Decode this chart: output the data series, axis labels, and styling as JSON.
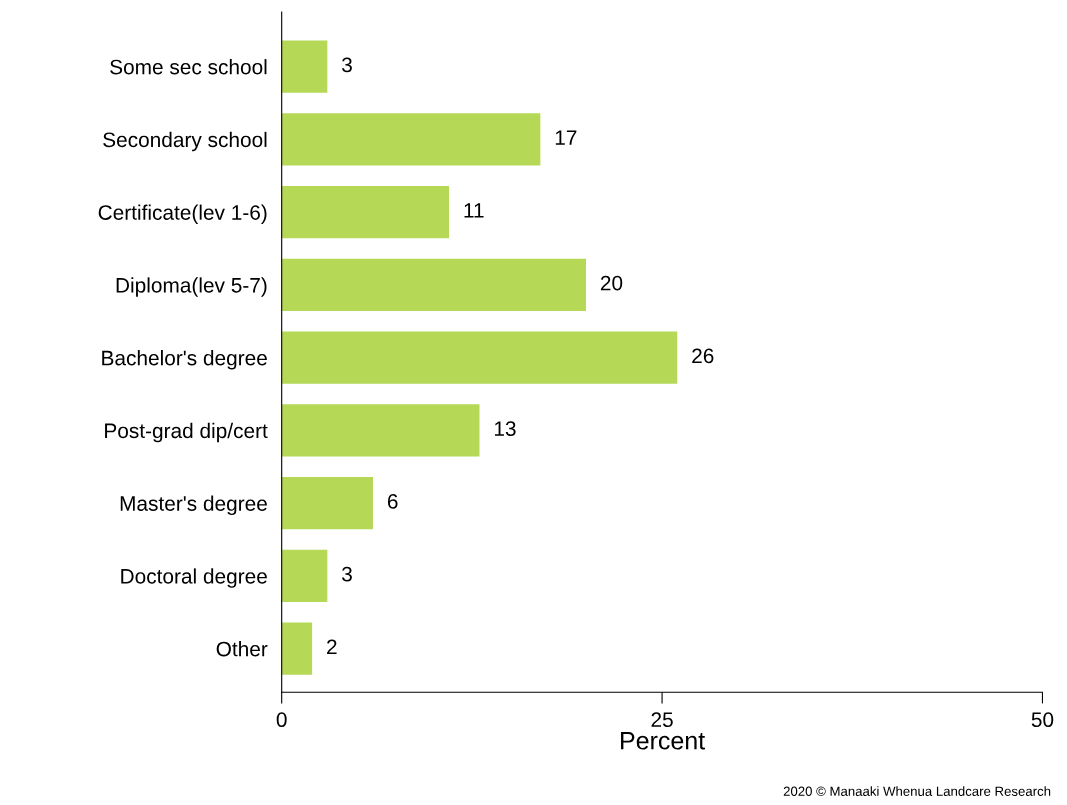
{
  "chart_data": {
    "type": "bar",
    "orientation": "horizontal",
    "categories": [
      "Some sec school",
      "Secondary school",
      "Certificate(lev 1-6)",
      "Diploma(lev 5-7)",
      "Bachelor's degree",
      "Post-grad dip/cert",
      "Master's degree",
      "Doctoral degree",
      "Other"
    ],
    "values": [
      3,
      17,
      11,
      20,
      26,
      13,
      6,
      3,
      2
    ],
    "color": "#b5d957",
    "xlabel": "Percent",
    "xlim": [
      0,
      50
    ],
    "xticks": [
      0,
      25,
      50
    ],
    "data_labels": true,
    "grid": false,
    "annotations": [
      "2020 © Manaaki Whenua Landcare Research"
    ]
  }
}
